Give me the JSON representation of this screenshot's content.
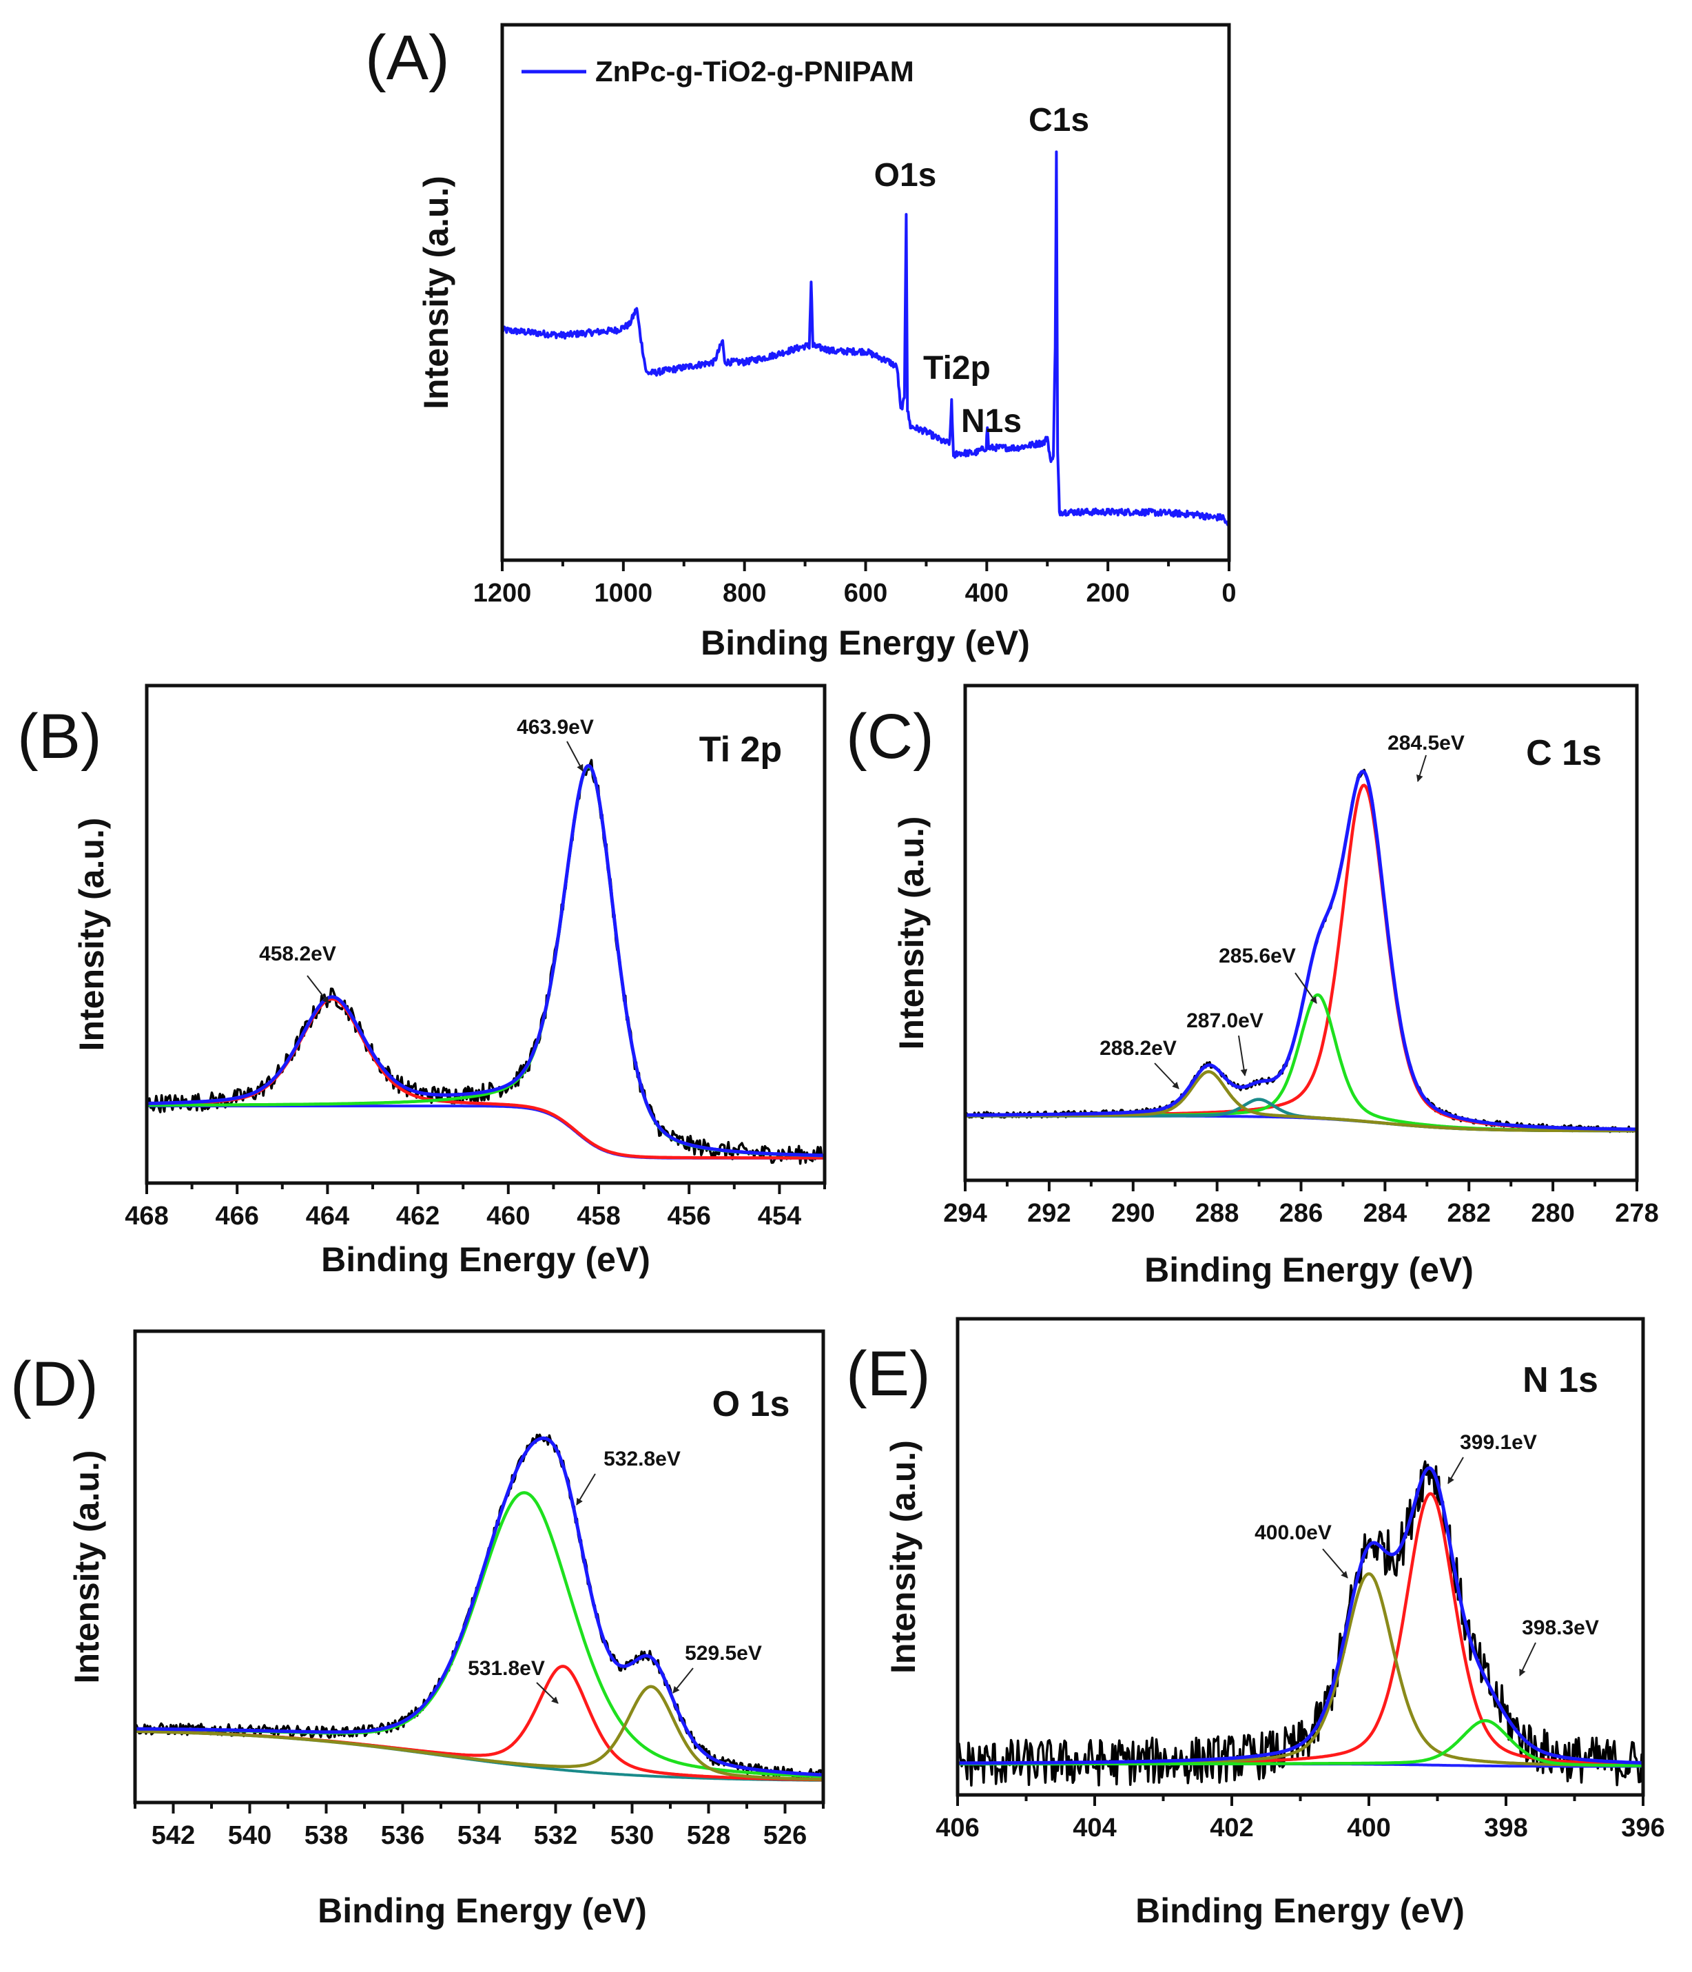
{
  "chart_data": [
    {
      "id": "A",
      "type": "line",
      "panel_label": "(A)",
      "xlabel": "Binding Energy (eV)",
      "ylabel": "Intensity (a.u.)",
      "xlim": [
        1200,
        0
      ],
      "ylim": [
        0,
        1
      ],
      "xticks": [
        1200,
        1000,
        800,
        600,
        400,
        200,
        0
      ],
      "legend": {
        "label": "ZnPc-g-TiO2-g-PNIPAM",
        "color": "#1a1aff",
        "placement": "top-left"
      },
      "annotations": [
        {
          "text": "O1s",
          "x": 532
        },
        {
          "text": "C1s",
          "x": 285
        },
        {
          "text": "Ti2p",
          "x": 458
        },
        {
          "text": "N1s",
          "x": 399
        }
      ],
      "series": [
        {
          "name": "ZnPc-g-TiO2-g-PNIPAM",
          "color": "#1a1aff",
          "noise": 0.006,
          "x": [
            1200,
            1100,
            1010,
            990,
            978,
            972,
            962,
            950,
            900,
            850,
            836,
            833,
            800,
            760,
            700,
            693,
            690,
            687,
            650,
            600,
            560,
            548,
            542,
            536,
            533,
            531,
            526,
            500,
            470,
            461,
            458,
            455,
            450,
            420,
            401,
            399,
            397,
            350,
            305,
            300,
            294,
            290,
            287,
            285,
            283,
            280,
            250,
            200,
            150,
            100,
            50,
            30,
            10,
            0
          ],
          "y": [
            0.43,
            0.42,
            0.43,
            0.44,
            0.47,
            0.42,
            0.35,
            0.35,
            0.36,
            0.37,
            0.41,
            0.37,
            0.37,
            0.38,
            0.4,
            0.4,
            0.52,
            0.4,
            0.39,
            0.39,
            0.37,
            0.36,
            0.28,
            0.3,
            0.65,
            0.28,
            0.25,
            0.24,
            0.22,
            0.22,
            0.3,
            0.19,
            0.2,
            0.2,
            0.21,
            0.25,
            0.21,
            0.21,
            0.22,
            0.23,
            0.18,
            0.2,
            0.4,
            0.76,
            0.2,
            0.09,
            0.09,
            0.09,
            0.09,
            0.088,
            0.085,
            0.08,
            0.08,
            0.06
          ]
        }
      ]
    },
    {
      "id": "B",
      "type": "line",
      "panel_label": "(B)",
      "title": "Ti 2p",
      "xlabel": "Binding Energy (eV)",
      "ylabel": "Intensity (a.u.)",
      "xlim": [
        468,
        453
      ],
      "ylim": [
        0,
        1
      ],
      "xticks": [
        468,
        466,
        464,
        462,
        460,
        458,
        456,
        454
      ],
      "background": {
        "high": 0.155,
        "low": 0.05,
        "step_center": 458.5,
        "step_width": 0.35,
        "color": "#2222ff"
      },
      "noise": 0.018,
      "raw_color": "#000000",
      "envelope_color": "#1a1aff",
      "components": [
        {
          "label": "463.9eV",
          "center": 463.9,
          "height": 0.215,
          "fwhm": 1.7,
          "color": "#ff1a1a"
        },
        {
          "label": "458.2eV",
          "center": 458.2,
          "height": 0.755,
          "fwhm": 1.35,
          "color": "#1ee01e"
        }
      ]
    },
    {
      "id": "C",
      "type": "line",
      "panel_label": "(C)",
      "title": "C 1s",
      "xlabel": "Binding Energy (eV)",
      "ylabel": "Intensity (a.u.)",
      "xlim": [
        294,
        278
      ],
      "ylim": [
        0,
        1
      ],
      "xticks": [
        294,
        292,
        290,
        288,
        286,
        284,
        282,
        280,
        278
      ],
      "background": {
        "high": 0.13,
        "low": 0.1,
        "step_center": 284,
        "step_width": 1.0,
        "color": "#2222ff"
      },
      "noise": 0.006,
      "raw_color": "#000000",
      "envelope_color": "#1a1aff",
      "components": [
        {
          "label": "284.5eV",
          "center": 284.5,
          "height": 0.68,
          "fwhm": 1.25,
          "color": "#ff1a1a"
        },
        {
          "label": "285.6eV",
          "center": 285.6,
          "height": 0.25,
          "fwhm": 1.05,
          "color": "#1ee01e"
        },
        {
          "label": "287.0eV",
          "center": 287.0,
          "height": 0.035,
          "fwhm": 0.9,
          "color": "#1a8a8a"
        },
        {
          "label": "288.2eV",
          "center": 288.2,
          "height": 0.09,
          "fwhm": 1.0,
          "color": "#8a8a1a"
        }
      ]
    },
    {
      "id": "D",
      "type": "line",
      "panel_label": "(D)",
      "title": "O 1s",
      "xlabel": "Binding Energy (eV)",
      "ylabel": "Intensity (a.u.)",
      "xlim": [
        543,
        525
      ],
      "ylim": [
        0,
        1
      ],
      "xticks": [
        542,
        540,
        538,
        536,
        534,
        532,
        530,
        528,
        526
      ],
      "background": {
        "high": 0.155,
        "low": 0.045,
        "step_center": 535,
        "step_width": 2.5,
        "color": "#1a8a8a"
      },
      "noise": 0.012,
      "raw_color": "#000000",
      "envelope_color": "#1a1aff",
      "components": [
        {
          "label": "532.8eV",
          "center": 532.8,
          "height": 0.58,
          "fwhm": 3.0,
          "color": "#1ee01e"
        },
        {
          "label": "531.8eV",
          "center": 531.8,
          "height": 0.22,
          "fwhm": 1.6,
          "color": "#ff1a1a"
        },
        {
          "label": "529.5eV",
          "center": 529.5,
          "height": 0.19,
          "fwhm": 1.5,
          "color": "#8a8a1a"
        }
      ]
    },
    {
      "id": "E",
      "type": "line",
      "panel_label": "(E)",
      "title": "N 1s",
      "xlabel": "Binding Energy (eV)",
      "ylabel": "Intensity (a.u.)",
      "xlim": [
        406,
        396
      ],
      "ylim": [
        0,
        1
      ],
      "xticks": [
        406,
        404,
        402,
        400,
        398,
        396
      ],
      "background": {
        "high": 0.065,
        "low": 0.06,
        "step_center": 399,
        "step_width": 0.5,
        "color": "#2222ff"
      },
      "noise": 0.05,
      "raw_color": "#000000",
      "envelope_color": "#1a1aff",
      "components": [
        {
          "label": "399.1eV",
          "center": 399.1,
          "height": 0.57,
          "fwhm": 0.85,
          "color": "#ff1a1a"
        },
        {
          "label": "400.0eV",
          "center": 400.0,
          "height": 0.4,
          "fwhm": 0.85,
          "color": "#8a8a1a"
        },
        {
          "label": "398.3eV",
          "center": 398.3,
          "height": 0.095,
          "fwhm": 0.85,
          "color": "#1ee01e"
        }
      ]
    }
  ]
}
